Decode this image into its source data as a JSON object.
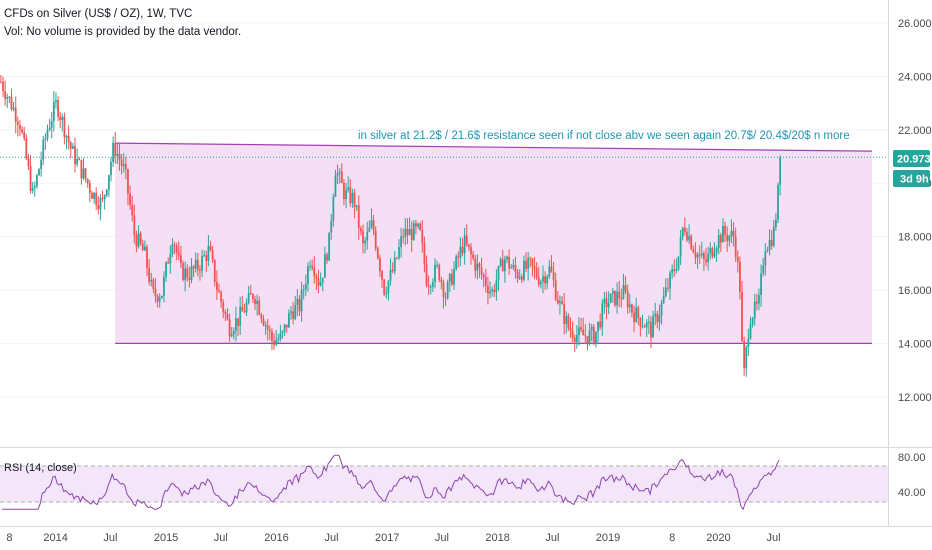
{
  "header": {
    "title": "CFDs on Silver (US$ / OZ), 1W, TVC",
    "volume_note": "Vol: No volume is provided by the data vendor."
  },
  "rsi_panel": {
    "label": "RSI (14, close)",
    "ticks": [
      "80.00",
      "40.00"
    ],
    "levels": [
      70,
      30
    ]
  },
  "price_tag": {
    "value": "20.973",
    "timer": "3d 9h",
    "color": "#26a69a"
  },
  "annotation": "in silver at 21.2$ / 21.6$ resistance seen if not close abv we seen again 20.7$/ 20.4$/20$ n more",
  "colors": {
    "up": "#26a69a",
    "down": "#ef5350",
    "range_fill": "#f3d9f2",
    "range_border": "#a33fb5",
    "rsi_line": "#8e44ad",
    "rsi_band": "#f3e6f9",
    "annotation": "#2196b4"
  },
  "chart_data": {
    "type": "candlestick",
    "symbol": "CFDs on Silver (US$ / OZ)",
    "interval": "1W",
    "source": "TVC",
    "y_axis_ticks": [
      "26.000",
      "24.000",
      "22.000",
      "20.000",
      "18.000",
      "16.000",
      "14.000",
      "12.000"
    ],
    "ylim": [
      10.9,
      26.6
    ],
    "x_axis_labels": [
      "8",
      "2014",
      "Jul",
      "2015",
      "Jul",
      "2016",
      "Jul",
      "2017",
      "Jul",
      "2018",
      "Jul",
      "2019",
      "8",
      "2020",
      "Jul"
    ],
    "last_price": 20.973,
    "range_box": {
      "top_start": 21.5,
      "top_end": 21.2,
      "bottom": 14.0
    },
    "price_path": [
      [
        "2013-07-01",
        23.8
      ],
      [
        "2013-09-01",
        22.3
      ],
      [
        "2013-10-15",
        19.5
      ],
      [
        "2013-12-01",
        22.0
      ],
      [
        "2014-01-01",
        23.0
      ],
      [
        "2014-02-20",
        21.2
      ],
      [
        "2014-04-01",
        20.3
      ],
      [
        "2014-05-01",
        19.6
      ],
      [
        "2014-06-01",
        19.2
      ],
      [
        "2014-07-10",
        21.4
      ],
      [
        "2014-08-15",
        20.4
      ],
      [
        "2014-09-15",
        18.1
      ],
      [
        "2014-10-20",
        17.3
      ],
      [
        "2014-11-15",
        15.8
      ],
      [
        "2014-12-15",
        15.9
      ],
      [
        "2015-01-20",
        18.1
      ],
      [
        "2015-02-15",
        16.7
      ],
      [
        "2015-03-15",
        16.6
      ],
      [
        "2015-04-15",
        16.9
      ],
      [
        "2015-05-20",
        17.5
      ],
      [
        "2015-06-15",
        16.1
      ],
      [
        "2015-07-25",
        14.6
      ],
      [
        "2015-08-25",
        14.9
      ],
      [
        "2015-10-15",
        15.9
      ],
      [
        "2015-12-15",
        14.1
      ],
      [
        "2016-01-15",
        14.2
      ],
      [
        "2016-02-15",
        15.2
      ],
      [
        "2016-03-15",
        15.4
      ],
      [
        "2016-04-20",
        17.3
      ],
      [
        "2016-05-20",
        16.2
      ],
      [
        "2016-06-20",
        17.8
      ],
      [
        "2016-07-10",
        20.6
      ],
      [
        "2016-08-10",
        19.6
      ],
      [
        "2016-09-10",
        19.4
      ],
      [
        "2016-10-10",
        17.6
      ],
      [
        "2016-11-10",
        18.5
      ],
      [
        "2016-12-20",
        16.0
      ],
      [
        "2017-01-20",
        16.8
      ],
      [
        "2017-02-20",
        18.1
      ],
      [
        "2017-04-15",
        18.2
      ],
      [
        "2017-05-10",
        16.3
      ],
      [
        "2017-06-15",
        16.8
      ],
      [
        "2017-07-10",
        15.8
      ],
      [
        "2017-09-08",
        17.8
      ],
      [
        "2017-10-15",
        17.0
      ],
      [
        "2017-12-10",
        15.9
      ],
      [
        "2018-01-20",
        17.2
      ],
      [
        "2018-03-01",
        16.6
      ],
      [
        "2018-04-15",
        16.9
      ],
      [
        "2018-05-20",
        16.4
      ],
      [
        "2018-06-20",
        16.8
      ],
      [
        "2018-07-20",
        15.5
      ],
      [
        "2018-08-20",
        14.6
      ],
      [
        "2018-09-20",
        14.3
      ],
      [
        "2018-11-15",
        14.3
      ],
      [
        "2018-12-20",
        15.5
      ],
      [
        "2019-01-20",
        15.7
      ],
      [
        "2019-02-20",
        15.9
      ],
      [
        "2019-03-20",
        15.2
      ],
      [
        "2019-05-20",
        14.5
      ],
      [
        "2019-06-20",
        15.3
      ],
      [
        "2019-07-20",
        16.3
      ],
      [
        "2019-08-20",
        17.3
      ],
      [
        "2019-09-05",
        18.5
      ],
      [
        "2019-10-15",
        17.4
      ],
      [
        "2019-11-15",
        17.0
      ],
      [
        "2019-12-20",
        17.8
      ],
      [
        "2020-01-10",
        18.1
      ],
      [
        "2020-02-20",
        18.0
      ],
      [
        "2020-03-10",
        16.0
      ],
      [
        "2020-03-20",
        12.5
      ],
      [
        "2020-04-10",
        15.0
      ],
      [
        "2020-05-10",
        15.4
      ],
      [
        "2020-05-30",
        17.7
      ],
      [
        "2020-06-15",
        17.8
      ],
      [
        "2020-06-30",
        18.2
      ],
      [
        "2020-07-10",
        19.2
      ],
      [
        "2020-07-22",
        20.973
      ]
    ]
  }
}
